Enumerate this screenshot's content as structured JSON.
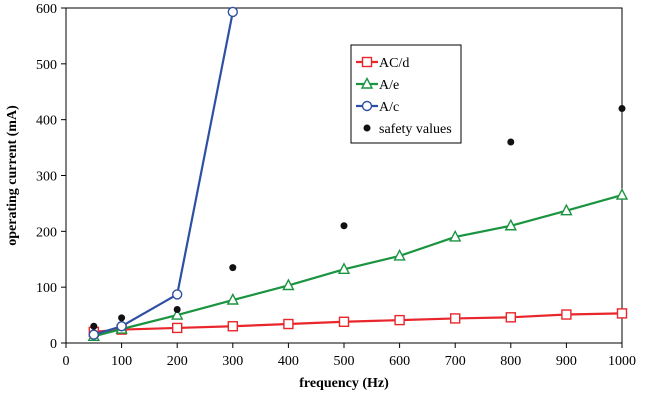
{
  "chart_data": {
    "type": "line",
    "xlabel": "frequency (Hz)",
    "ylabel": "operating current (mA)",
    "xlim": [
      0,
      1000
    ],
    "ylim": [
      0,
      600
    ],
    "xticks": [
      0,
      100,
      200,
      300,
      400,
      500,
      600,
      700,
      800,
      900,
      1000
    ],
    "yticks": [
      0,
      100,
      200,
      300,
      400,
      500,
      600
    ],
    "grid": false,
    "legend_position": "top-center-right",
    "series": [
      {
        "name": "AC/d",
        "color": "#e8262b",
        "marker": "square-open",
        "line": true,
        "x": [
          50,
          100,
          200,
          300,
          400,
          500,
          600,
          700,
          800,
          900,
          1000
        ],
        "y": [
          20,
          24,
          27,
          30,
          34,
          38,
          41,
          44,
          46,
          51,
          53
        ]
      },
      {
        "name": "A/e",
        "color": "#1a9440",
        "marker": "triangle-open",
        "line": true,
        "x": [
          50,
          100,
          200,
          300,
          400,
          500,
          600,
          700,
          800,
          900,
          1000
        ],
        "y": [
          12,
          25,
          50,
          77,
          103,
          132,
          156,
          190,
          210,
          237,
          265
        ]
      },
      {
        "name": "A/c",
        "color": "#2e50a3",
        "marker": "circle-open",
        "line": true,
        "x": [
          50,
          100,
          200,
          300
        ],
        "y": [
          15,
          30,
          87,
          593
        ]
      },
      {
        "name": "safety values",
        "color": "#111111",
        "marker": "circle-filled",
        "line": false,
        "x": [
          50,
          100,
          200,
          300,
          500,
          800,
          1000
        ],
        "y": [
          30,
          45,
          60,
          135,
          210,
          360,
          420
        ]
      }
    ]
  }
}
